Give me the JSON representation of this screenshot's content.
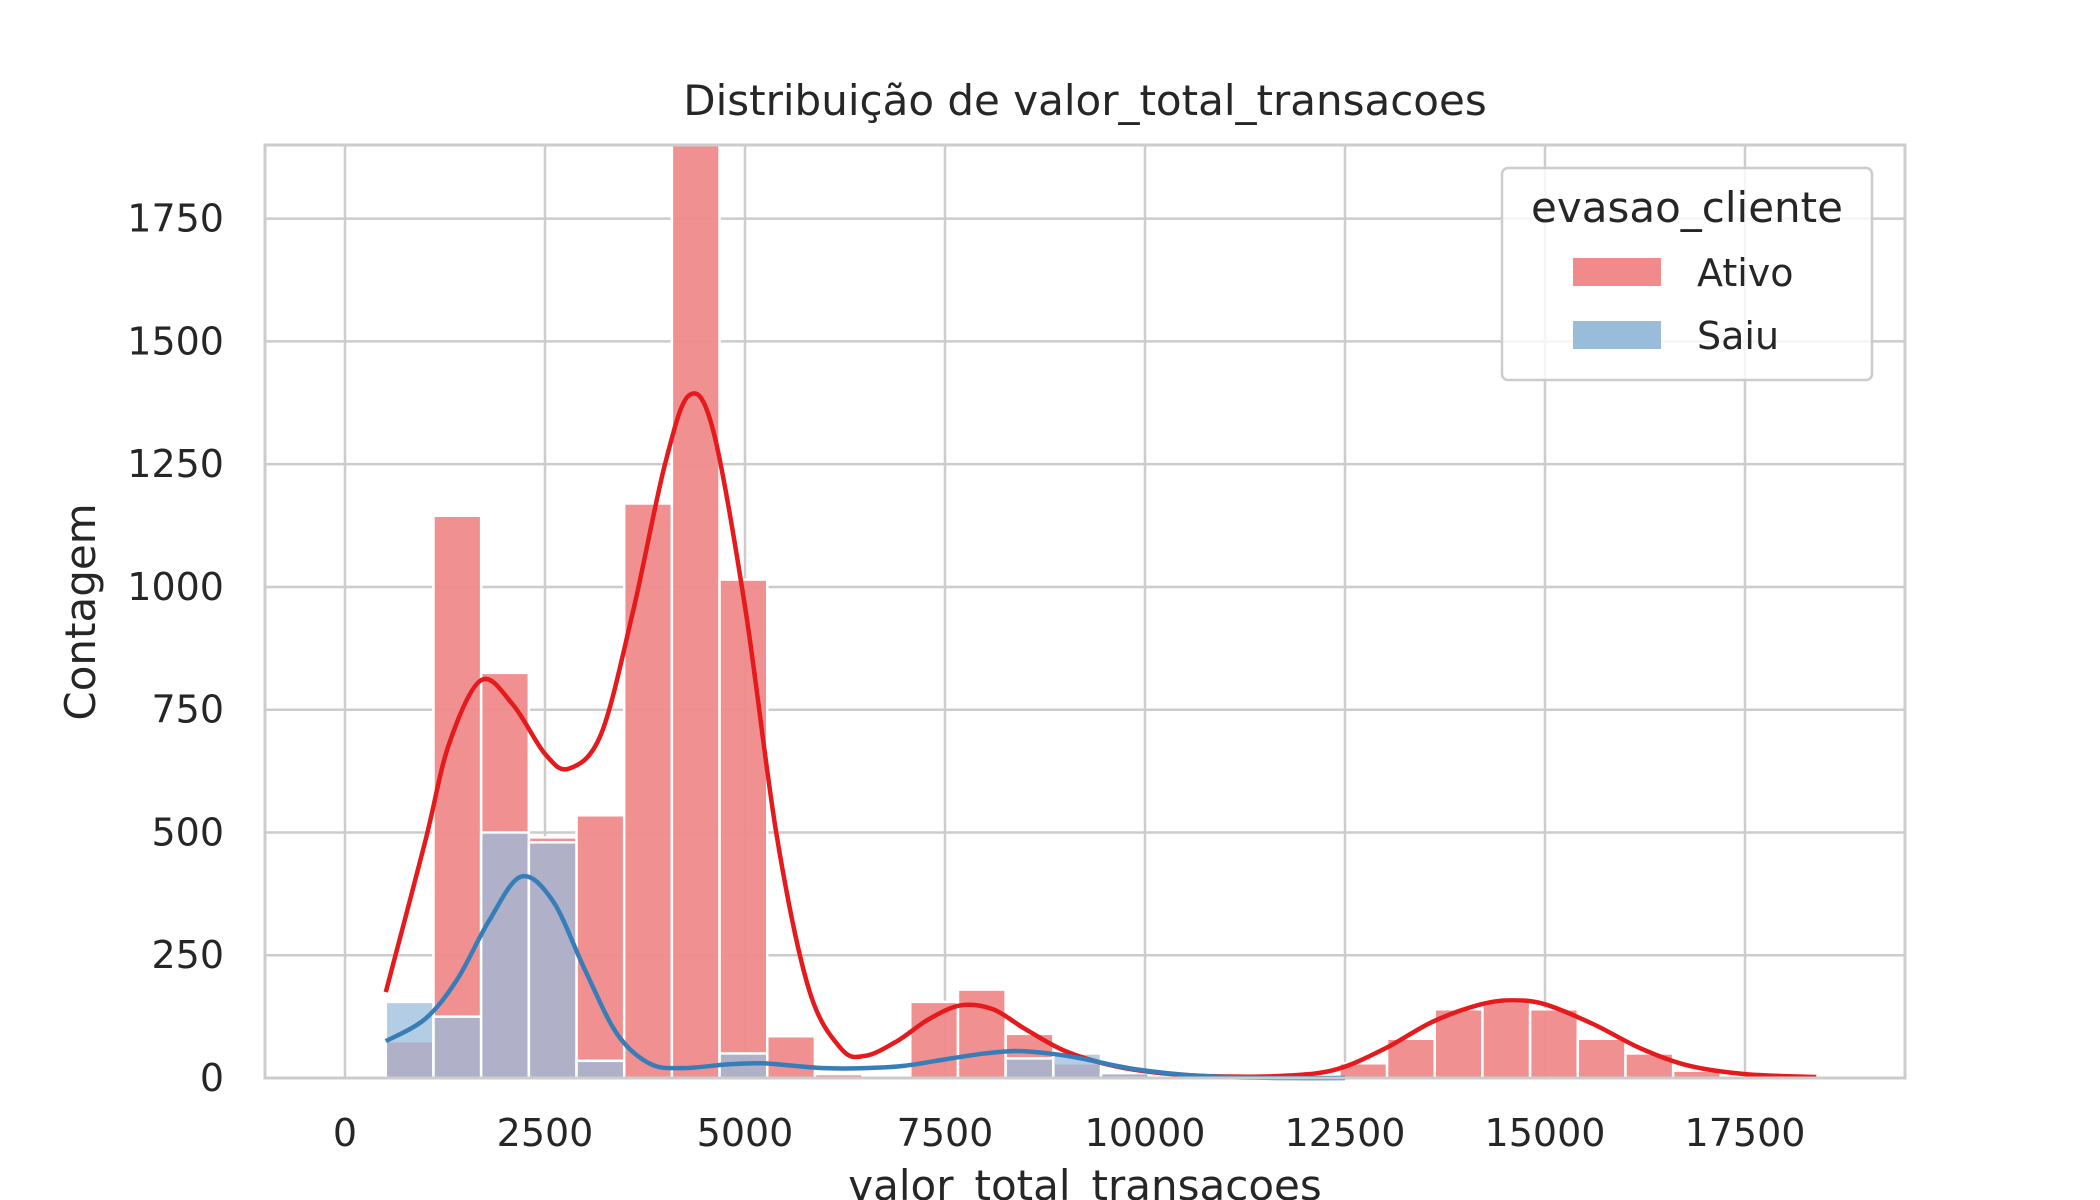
{
  "chart_data": {
    "type": "histogram",
    "title": "Distribuição de valor_total_transacoes",
    "xlabel": "valor_total_transacoes",
    "ylabel": "Contagem",
    "xlim": [
      -1000,
      19500
    ],
    "ylim": [
      0,
      1900
    ],
    "xticks": [
      0,
      2500,
      5000,
      7500,
      10000,
      12500,
      15000,
      17500
    ],
    "yticks": [
      0,
      250,
      500,
      750,
      1000,
      1250,
      1500,
      1750
    ],
    "grid": true,
    "legend": {
      "title": "evasao_cliente",
      "position": "top-right"
    },
    "bin_edges": [
      510,
      1106,
      1702,
      2298,
      2894,
      3490,
      4086,
      4682,
      5278,
      5874,
      6470,
      7066,
      7662,
      8258,
      8854,
      9450,
      10046,
      10642,
      11238,
      11834,
      12430,
      13026,
      13622,
      14218,
      14814,
      15410,
      16006,
      16602,
      17198,
      17794,
      18390
    ],
    "series": [
      {
        "name": "Ativo",
        "color": "#e41a1c",
        "bar_color": "#f08a8b",
        "counts": [
          75,
          1145,
          825,
          490,
          535,
          1170,
          1900,
          1015,
          85,
          8,
          5,
          155,
          180,
          90,
          30,
          10,
          5,
          2,
          2,
          5,
          30,
          80,
          140,
          155,
          140,
          80,
          50,
          15,
          5,
          2
        ],
        "kde": [
          [
            510,
            175
          ],
          [
            1000,
            480
          ],
          [
            1300,
            680
          ],
          [
            1700,
            810
          ],
          [
            2100,
            760
          ],
          [
            2500,
            660
          ],
          [
            2800,
            630
          ],
          [
            3200,
            700
          ],
          [
            3600,
            950
          ],
          [
            4000,
            1250
          ],
          [
            4300,
            1390
          ],
          [
            4600,
            1320
          ],
          [
            5000,
            960
          ],
          [
            5400,
            490
          ],
          [
            5800,
            180
          ],
          [
            6200,
            60
          ],
          [
            6500,
            45
          ],
          [
            6900,
            75
          ],
          [
            7300,
            120
          ],
          [
            7700,
            148
          ],
          [
            8100,
            140
          ],
          [
            8500,
            100
          ],
          [
            9000,
            55
          ],
          [
            9600,
            25
          ],
          [
            10200,
            10
          ],
          [
            11000,
            3
          ],
          [
            11800,
            5
          ],
          [
            12400,
            18
          ],
          [
            13000,
            60
          ],
          [
            13600,
            115
          ],
          [
            14200,
            150
          ],
          [
            14600,
            158
          ],
          [
            15000,
            150
          ],
          [
            15600,
            110
          ],
          [
            16200,
            60
          ],
          [
            16800,
            25
          ],
          [
            17500,
            8
          ],
          [
            18390,
            2
          ]
        ]
      },
      {
        "name": "Saiu",
        "color": "#377eb8",
        "bar_color": "#99bcdb",
        "counts": [
          155,
          125,
          500,
          480,
          35,
          0,
          0,
          50,
          0,
          0,
          0,
          0,
          0,
          40,
          50,
          10,
          0,
          0,
          0,
          0,
          0,
          0,
          0,
          0,
          0,
          0,
          0,
          0,
          0,
          0
        ],
        "kde": [
          [
            510,
            75
          ],
          [
            1000,
            120
          ],
          [
            1400,
            200
          ],
          [
            1800,
            320
          ],
          [
            2200,
            410
          ],
          [
            2600,
            360
          ],
          [
            3000,
            220
          ],
          [
            3400,
            90
          ],
          [
            3800,
            30
          ],
          [
            4200,
            20
          ],
          [
            4800,
            28
          ],
          [
            5200,
            30
          ],
          [
            5600,
            25
          ],
          [
            6000,
            20
          ],
          [
            6500,
            20
          ],
          [
            7000,
            25
          ],
          [
            7500,
            38
          ],
          [
            8000,
            50
          ],
          [
            8400,
            55
          ],
          [
            8800,
            50
          ],
          [
            9200,
            40
          ],
          [
            9800,
            20
          ],
          [
            10400,
            8
          ],
          [
            11000,
            2
          ],
          [
            11800,
            0
          ],
          [
            12500,
            0
          ]
        ]
      }
    ]
  }
}
